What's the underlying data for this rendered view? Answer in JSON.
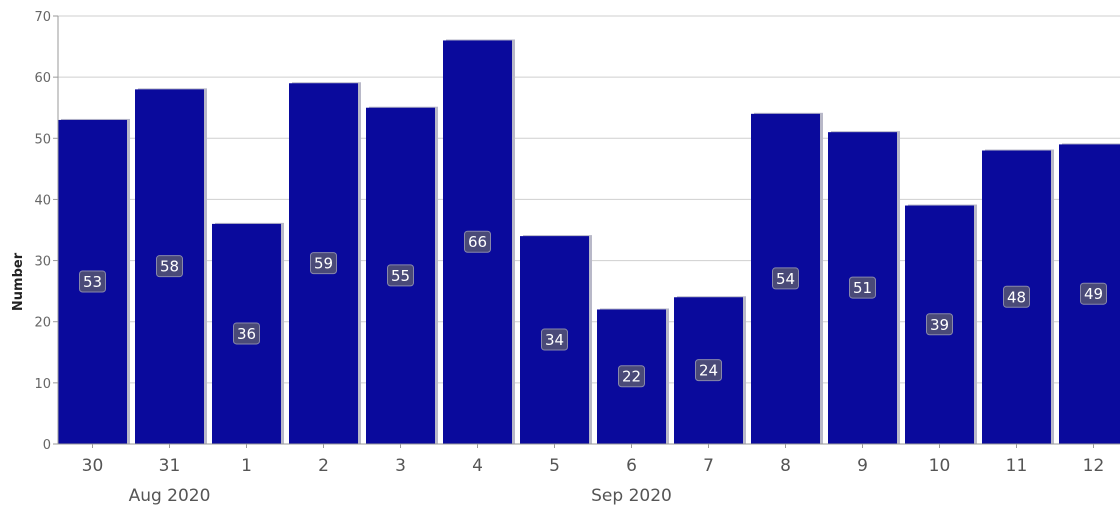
{
  "chart_data": {
    "type": "bar",
    "ylabel": "Number",
    "ylim": [
      0,
      70
    ],
    "yticks": [
      0,
      10,
      20,
      30,
      40,
      50,
      60,
      70
    ],
    "categories": [
      "30",
      "31",
      "1",
      "2",
      "3",
      "4",
      "5",
      "6",
      "7",
      "8",
      "9",
      "10",
      "11",
      "12"
    ],
    "values": [
      53,
      58,
      36,
      59,
      55,
      66,
      34,
      22,
      24,
      54,
      51,
      39,
      48,
      49
    ],
    "month_labels": [
      {
        "label": "Aug 2020",
        "category": "31"
      },
      {
        "label": "Sep 2020",
        "category": "6"
      }
    ],
    "bar_color": "#0a0a9c",
    "grid": true,
    "legend": "none"
  }
}
